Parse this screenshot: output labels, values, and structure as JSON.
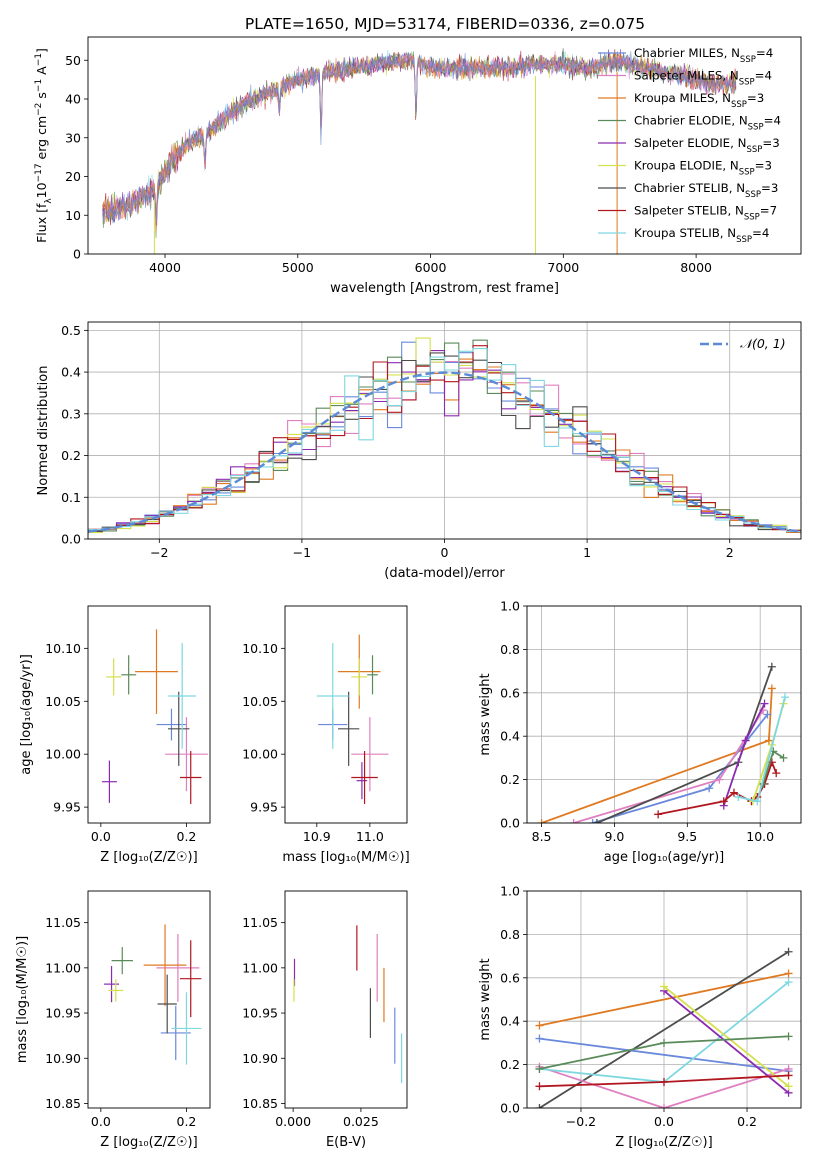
{
  "figure": {
    "title": "PLATE=1650, MJD=53174, FIBERID=0336, z=0.075"
  },
  "colors": {
    "c0": "#6a89dc",
    "c1": "#e07a22",
    "c2": "#5a8a5a",
    "c3": "#8b2bb2",
    "c4": "#d4e04c",
    "c5": "#4d4d4d",
    "c6": "#b0171f",
    "c7": "#7fd8e0",
    "c8": "#e07fbf"
  },
  "chart_data": [
    {
      "type": "line",
      "id": "spectrum",
      "xlabel": "wavelength [Angstrom, rest frame]",
      "ylabel_parts": [
        "Flux [f",
        "λ",
        "10",
        "−17",
        " erg cm",
        "−2",
        " s",
        "−1",
        " A",
        "−1",
        "]"
      ],
      "xlim": [
        3420,
        8790
      ],
      "ylim": [
        0,
        56
      ],
      "xticks": [
        4000,
        5000,
        6000,
        7000,
        8000
      ],
      "yticks": [
        0,
        10,
        20,
        30,
        40,
        50
      ],
      "legend_position": "upper right",
      "series": [
        {
          "name": "Chabrier MILES, N",
          "sub": "SSP",
          "suffix": "=4",
          "color": "#6a89dc"
        },
        {
          "name": "Salpeter MILES, N",
          "sub": "SSP",
          "suffix": "=4",
          "color": "#e07fbf"
        },
        {
          "name": "Kroupa MILES, N",
          "sub": "SSP",
          "suffix": "=3",
          "color": "#e07a22"
        },
        {
          "name": "Chabrier ELODIE, N",
          "sub": "SSP",
          "suffix": "=4",
          "color": "#5a8a5a"
        },
        {
          "name": "Salpeter ELODIE, N",
          "sub": "SSP",
          "suffix": "=3",
          "color": "#8b2bb2"
        },
        {
          "name": "Kroupa ELODIE, N",
          "sub": "SSP",
          "suffix": "=3",
          "color": "#d4e04c"
        },
        {
          "name": "Chabrier STELIB, N",
          "sub": "SSP",
          "suffix": "=3",
          "color": "#4d4d4d"
        },
        {
          "name": "Salpeter STELIB, N",
          "sub": "SSP",
          "suffix": "=7",
          "color": "#b0171f"
        },
        {
          "name": "Kroupa STELIB, N",
          "sub": "SSP",
          "suffix": "=4",
          "color": "#7fd8e0"
        }
      ],
      "continuum": {
        "x": [
          3550,
          3700,
          3850,
          3950,
          4050,
          4150,
          4300,
          4450,
          4600,
          4800,
          5000,
          5200,
          5400,
          5600,
          5800,
          5900,
          6000,
          6200,
          6400,
          6600,
          6800,
          7000,
          7200,
          7400,
          7600,
          7900,
          8100,
          8300
        ],
        "y": [
          11,
          12,
          15,
          18,
          24,
          28,
          31,
          35,
          39,
          42,
          45,
          47,
          48,
          49,
          50,
          50,
          48,
          48,
          48,
          48,
          49,
          49,
          48,
          50,
          48,
          46,
          44,
          44
        ]
      },
      "dips": [
        {
          "x": 5175,
          "depth": 16
        },
        {
          "x": 5890,
          "depth": 14
        },
        {
          "x": 4300,
          "depth": 8
        },
        {
          "x": 3934,
          "depth": 9
        },
        {
          "x": 4861,
          "depth": 6
        }
      ],
      "outliers": [
        {
          "x": 3920,
          "to": 0,
          "color": "#d4e04c"
        },
        {
          "x": 6790,
          "to": 0,
          "color": "#d4e04c"
        },
        {
          "x": 7405,
          "to": 0,
          "color": "#e07a22"
        }
      ]
    },
    {
      "type": "histogram",
      "id": "residuals",
      "xlabel": "(data-model)/error",
      "ylabel": "Normed distribution",
      "xlim": [
        -2.5,
        2.5
      ],
      "ylim": [
        0,
        0.52
      ],
      "xticks": [
        -2,
        -1,
        0,
        1,
        2
      ],
      "yticks": [
        0.0,
        0.1,
        0.2,
        0.3,
        0.4,
        0.5
      ],
      "ytick_labels": [
        "0.0",
        "0.1",
        "0.2",
        "0.3",
        "0.4",
        "0.5"
      ],
      "grid": true,
      "bin_width": 0.1,
      "reference_curve": {
        "name": "𝒩(0, 1)",
        "color": "#5b8bd6",
        "dashed": true
      },
      "legend_position": "upper right"
    },
    {
      "type": "errorbar",
      "id": "age_vs_Z",
      "xlabel": "Z [log₁₀(Z/Z☉)]",
      "ylabel": "age  [log₁₀(age/yr)]",
      "xlim": [
        -0.03,
        0.255
      ],
      "ylim": [
        9.935,
        10.14
      ],
      "xticks": [
        0.0,
        0.2
      ],
      "xtick_labels": [
        "0.0",
        "0.2"
      ],
      "yticks": [
        9.95,
        10.0,
        10.05,
        10.1
      ],
      "ytick_labels": [
        "9.95",
        "10.00",
        "10.05",
        "10.10"
      ],
      "points": [
        {
          "c": "#6a89dc",
          "x": 0.165,
          "xe": 0.07,
          "y": 10.028,
          "ye": 0.03
        },
        {
          "c": "#e07fbf",
          "x": 0.2,
          "xe": 0.1,
          "y": 10.0,
          "ye": 0.07
        },
        {
          "c": "#e07a22",
          "x": 0.13,
          "xe": 0.1,
          "y": 10.078,
          "ye": 0.08
        },
        {
          "c": "#5a8a5a",
          "x": 0.065,
          "xe": 0.035,
          "y": 10.075,
          "ye": 0.037
        },
        {
          "c": "#8b2bb2",
          "x": 0.02,
          "xe": 0.035,
          "y": 9.974,
          "ye": 0.04
        },
        {
          "c": "#d4e04c",
          "x": 0.03,
          "xe": 0.035,
          "y": 10.073,
          "ye": 0.035
        },
        {
          "c": "#4d4d4d",
          "x": 0.182,
          "xe": 0.05,
          "y": 10.024,
          "ye": 0.07
        },
        {
          "c": "#b0171f",
          "x": 0.21,
          "xe": 0.05,
          "y": 9.978,
          "ye": 0.05
        },
        {
          "c": "#7fd8e0",
          "x": 0.19,
          "xe": 0.065,
          "y": 10.055,
          "ye": 0.1
        }
      ]
    },
    {
      "type": "errorbar",
      "id": "age_vs_mass",
      "xlabel": "mass [log₁₀(M/M☉)]",
      "xlim": [
        10.84,
        11.07
      ],
      "ylim": [
        9.935,
        10.14
      ],
      "xticks": [
        10.9,
        11.0
      ],
      "xtick_labels": [
        "10.9",
        "11.0"
      ],
      "yticks": [
        9.95,
        10.0,
        10.05,
        10.1
      ],
      "ytick_labels": [
        "9.95",
        "10.00",
        "10.05",
        "10.10"
      ],
      "points": [
        {
          "c": "#6a89dc",
          "x": 10.93,
          "xe": 0.055,
          "y": 10.028,
          "ye": 0.03
        },
        {
          "c": "#e07fbf",
          "x": 11.0,
          "xe": 0.07,
          "y": 10.0,
          "ye": 0.07
        },
        {
          "c": "#e07a22",
          "x": 10.98,
          "xe": 0.08,
          "y": 10.078,
          "ye": 0.07
        },
        {
          "c": "#5a8a5a",
          "x": 11.005,
          "xe": 0.02,
          "y": 10.075,
          "ye": 0.037
        },
        {
          "c": "#8b2bb2",
          "x": 10.985,
          "xe": 0.02,
          "y": 9.975,
          "ye": 0.035
        },
        {
          "c": "#d4e04c",
          "x": 10.98,
          "xe": 0.03,
          "y": 10.073,
          "ye": 0.035
        },
        {
          "c": "#4d4d4d",
          "x": 10.96,
          "xe": 0.04,
          "y": 10.024,
          "ye": 0.07
        },
        {
          "c": "#b0171f",
          "x": 10.99,
          "xe": 0.05,
          "y": 9.978,
          "ye": 0.05
        },
        {
          "c": "#7fd8e0",
          "x": 10.93,
          "xe": 0.06,
          "y": 10.055,
          "ye": 0.1
        }
      ]
    },
    {
      "type": "line",
      "id": "massweight_vs_age",
      "xlabel": "age  [log₁₀(age/yr)]",
      "ylabel": "mass weight",
      "xlim": [
        8.4,
        10.28
      ],
      "ylim": [
        0,
        1.0
      ],
      "xticks": [
        8.5,
        9.0,
        9.5,
        10.0
      ],
      "xtick_labels": [
        "8.5",
        "9.0",
        "9.5",
        "10.0"
      ],
      "yticks": [
        0.0,
        0.2,
        0.4,
        0.6,
        0.8,
        1.0
      ],
      "ytick_labels": [
        "0.0",
        "0.2",
        "0.4",
        "0.6",
        "0.8",
        "1.0"
      ],
      "grid": true,
      "series": [
        {
          "c": "#e07a22",
          "x": [
            8.5,
            10.06,
            10.08
          ],
          "y": [
            0.0,
            0.38,
            0.62
          ]
        },
        {
          "c": "#6a89dc",
          "x": [
            8.85,
            9.65,
            10.05
          ],
          "y": [
            0.0,
            0.16,
            0.5
          ]
        },
        {
          "c": "#e07fbf",
          "x": [
            8.72,
            9.72,
            10.02
          ],
          "y": [
            0.0,
            0.2,
            0.52
          ]
        },
        {
          "c": "#4d4d4d",
          "x": [
            8.88,
            9.85,
            10.08
          ],
          "y": [
            0.0,
            0.28,
            0.72
          ]
        },
        {
          "c": "#8b2bb2",
          "x": [
            9.75,
            9.9,
            10.03
          ],
          "y": [
            0.08,
            0.38,
            0.55
          ]
        },
        {
          "c": "#b0171f",
          "x": [
            9.3,
            9.75,
            9.82,
            9.94,
            9.98,
            10.03,
            10.08,
            10.11
          ],
          "y": [
            0.04,
            0.1,
            0.14,
            0.1,
            0.12,
            0.18,
            0.28,
            0.23
          ]
        },
        {
          "c": "#5a8a5a",
          "x": [
            10.02,
            10.09,
            10.16
          ],
          "y": [
            0.18,
            0.33,
            0.3
          ]
        },
        {
          "c": "#d4e04c",
          "x": [
            9.95,
            10.08,
            10.16
          ],
          "y": [
            0.1,
            0.36,
            0.55
          ]
        },
        {
          "c": "#7fd8e0",
          "x": [
            9.85,
            9.98,
            10.17
          ],
          "y": [
            0.12,
            0.1,
            0.58
          ]
        }
      ]
    },
    {
      "type": "errorbar",
      "id": "mass_vs_Z",
      "xlabel": "Z [log₁₀(Z/Z☉)]",
      "ylabel": "mass [log₁₀(M/M☉)]",
      "xlim": [
        -0.03,
        0.255
      ],
      "ylim": [
        10.845,
        11.085
      ],
      "xticks": [
        0.0,
        0.2
      ],
      "xtick_labels": [
        "0.0",
        "0.2"
      ],
      "yticks": [
        10.85,
        10.9,
        10.95,
        11.0,
        11.05
      ],
      "ytick_labels": [
        "10.85",
        "10.90",
        "10.95",
        "11.00",
        "11.05"
      ],
      "points": [
        {
          "c": "#6a89dc",
          "x": 0.175,
          "xe": 0.07,
          "y": 10.928,
          "ye": 0.06
        },
        {
          "c": "#e07fbf",
          "x": 0.18,
          "xe": 0.1,
          "y": 11.0,
          "ye": 0.075
        },
        {
          "c": "#e07a22",
          "x": 0.15,
          "xe": 0.1,
          "y": 11.003,
          "ye": 0.09
        },
        {
          "c": "#5a8a5a",
          "x": 0.05,
          "xe": 0.05,
          "y": 11.008,
          "ye": 0.03
        },
        {
          "c": "#8b2bb2",
          "x": 0.025,
          "xe": 0.035,
          "y": 10.982,
          "ye": 0.04
        },
        {
          "c": "#d4e04c",
          "x": 0.035,
          "xe": 0.035,
          "y": 10.975,
          "ye": 0.025
        },
        {
          "c": "#4d4d4d",
          "x": 0.155,
          "xe": 0.045,
          "y": 10.96,
          "ye": 0.065
        },
        {
          "c": "#b0171f",
          "x": 0.21,
          "xe": 0.05,
          "y": 10.988,
          "ye": 0.085
        },
        {
          "c": "#7fd8e0",
          "x": 0.2,
          "xe": 0.07,
          "y": 10.933,
          "ye": 0.08
        }
      ]
    },
    {
      "type": "errorbar",
      "id": "mass_vs_ebv",
      "xlabel": "E(B-V)",
      "xlim": [
        -0.003,
        0.042
      ],
      "ylim": [
        10.845,
        11.085
      ],
      "xticks": [
        0.0,
        0.025
      ],
      "xtick_labels": [
        "0.000",
        "0.025"
      ],
      "yticks": [
        10.85,
        10.9,
        10.95,
        11.0,
        11.05
      ],
      "ytick_labels": [
        "10.85",
        "10.90",
        "10.95",
        "11.00",
        "11.05"
      ],
      "points": [
        {
          "c": "#8b2bb2",
          "x": 0.0005,
          "xe": 0,
          "y": 10.995,
          "ye": 0.03
        },
        {
          "c": "#d4e04c",
          "x": 0.0003,
          "xe": 0,
          "y": 10.975,
          "ye": 0.025
        },
        {
          "c": "#b0171f",
          "x": 0.0235,
          "xe": 0,
          "y": 11.022,
          "ye": 0.05
        },
        {
          "c": "#4d4d4d",
          "x": 0.0285,
          "xe": 0,
          "y": 10.95,
          "ye": 0.055
        },
        {
          "c": "#e07fbf",
          "x": 0.031,
          "xe": 0,
          "y": 11.0,
          "ye": 0.075
        },
        {
          "c": "#e07a22",
          "x": 0.0335,
          "xe": 0,
          "y": 10.97,
          "ye": 0.06
        },
        {
          "c": "#6a89dc",
          "x": 0.0375,
          "xe": 0,
          "y": 10.925,
          "ye": 0.062
        },
        {
          "c": "#7fd8e0",
          "x": 0.04,
          "xe": 0,
          "y": 10.9,
          "ye": 0.055
        }
      ]
    },
    {
      "type": "line",
      "id": "massweight_vs_Z",
      "xlabel": "Z [log₁₀(Z/Z☉)]",
      "ylabel": "mass weight",
      "xlim": [
        -0.33,
        0.33
      ],
      "ylim": [
        0,
        1.0
      ],
      "xticks": [
        -0.2,
        0.0,
        0.2
      ],
      "xtick_labels": [
        "−0.2",
        "0.0",
        "0.2"
      ],
      "yticks": [
        0.0,
        0.2,
        0.4,
        0.6,
        0.8,
        1.0
      ],
      "ytick_labels": [
        "0.0",
        "0.2",
        "0.4",
        "0.6",
        "0.8",
        "1.0"
      ],
      "grid": true,
      "series": [
        {
          "c": "#e07a22",
          "x": [
            -0.3,
            0.3
          ],
          "y": [
            0.38,
            0.62
          ]
        },
        {
          "c": "#4d4d4d",
          "x": [
            -0.3,
            0.3
          ],
          "y": [
            0.0,
            0.72
          ]
        },
        {
          "c": "#6a89dc",
          "x": [
            -0.3,
            0.3
          ],
          "y": [
            0.32,
            0.17
          ]
        },
        {
          "c": "#e07fbf",
          "x": [
            -0.3,
            0.0,
            0.3
          ],
          "y": [
            0.19,
            0.0,
            0.18
          ]
        },
        {
          "c": "#7fd8e0",
          "x": [
            -0.3,
            0.0,
            0.3
          ],
          "y": [
            0.18,
            0.12,
            0.58
          ]
        },
        {
          "c": "#8b2bb2",
          "x": [
            0.0,
            0.3
          ],
          "y": [
            0.54,
            0.07
          ]
        },
        {
          "c": "#d4e04c",
          "x": [
            0.0,
            0.3
          ],
          "y": [
            0.56,
            0.1
          ]
        },
        {
          "c": "#5a8a5a",
          "x": [
            -0.3,
            0.0,
            0.3
          ],
          "y": [
            0.18,
            0.3,
            0.33
          ]
        },
        {
          "c": "#b0171f",
          "x": [
            -0.3,
            0.0,
            0.3
          ],
          "y": [
            0.1,
            0.12,
            0.15
          ]
        }
      ]
    }
  ]
}
